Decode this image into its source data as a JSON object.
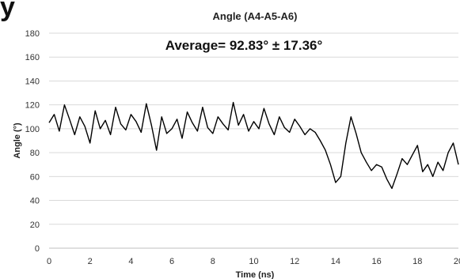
{
  "panel_letter": "y",
  "chart_data": {
    "type": "line",
    "title": "Angle (A4-A5-A6)",
    "annotation": "Average= 92.83° ± 17.36°",
    "xlabel": "Time (ns)",
    "ylabel": "Angle (°)",
    "xlim": [
      0,
      20
    ],
    "ylim": [
      0,
      180
    ],
    "x_ticks": [
      "0",
      "2",
      "4",
      "6",
      "8",
      "10",
      "12",
      "14",
      "16",
      "18",
      "20"
    ],
    "x_tick_values": [
      0,
      2,
      4,
      6,
      8,
      10,
      12,
      14,
      16,
      18,
      20
    ],
    "y_ticks": [
      "0",
      "20",
      "40",
      "60",
      "80",
      "100",
      "120",
      "140",
      "160",
      "180"
    ],
    "y_tick_values": [
      0,
      20,
      40,
      60,
      80,
      100,
      120,
      140,
      160,
      180
    ],
    "grid": true,
    "line_color": "#000000",
    "series": [
      {
        "x": [
          0,
          0.25,
          0.5,
          0.75,
          1,
          1.25,
          1.5,
          1.75,
          2,
          2.25,
          2.5,
          2.75,
          3,
          3.25,
          3.5,
          3.75,
          4,
          4.25,
          4.5,
          4.75,
          5,
          5.25,
          5.5,
          5.75,
          6,
          6.25,
          6.5,
          6.75,
          7,
          7.25,
          7.5,
          7.75,
          8,
          8.25,
          8.5,
          8.75,
          9,
          9.25,
          9.5,
          9.75,
          10,
          10.25,
          10.5,
          10.75,
          11,
          11.25,
          11.5,
          11.75,
          12,
          12.25,
          12.5,
          12.75,
          13,
          13.25,
          13.5,
          13.75,
          14,
          14.25,
          14.5,
          14.75,
          15,
          15.25,
          15.5,
          15.75,
          16,
          16.25,
          16.5,
          16.75,
          17,
          17.25,
          17.5,
          17.75,
          18,
          18.25,
          18.5,
          18.75,
          19,
          19.25,
          19.5,
          19.75,
          20
        ],
        "values": [
          105,
          112,
          98,
          120,
          108,
          95,
          110,
          102,
          88,
          115,
          100,
          107,
          95,
          118,
          104,
          99,
          112,
          106,
          97,
          121,
          103,
          82,
          110,
          96,
          100,
          108,
          92,
          114,
          105,
          98,
          118,
          101,
          96,
          110,
          104,
          99,
          122,
          103,
          112,
          98,
          106,
          100,
          117,
          104,
          95,
          110,
          101,
          97,
          108,
          102,
          95,
          100,
          97,
          90,
          82,
          70,
          55,
          60,
          88,
          110,
          96,
          80,
          72,
          65,
          70,
          68,
          58,
          50,
          62,
          75,
          70,
          78,
          86,
          64,
          70,
          60,
          72,
          65,
          80,
          88,
          70
        ]
      }
    ]
  }
}
